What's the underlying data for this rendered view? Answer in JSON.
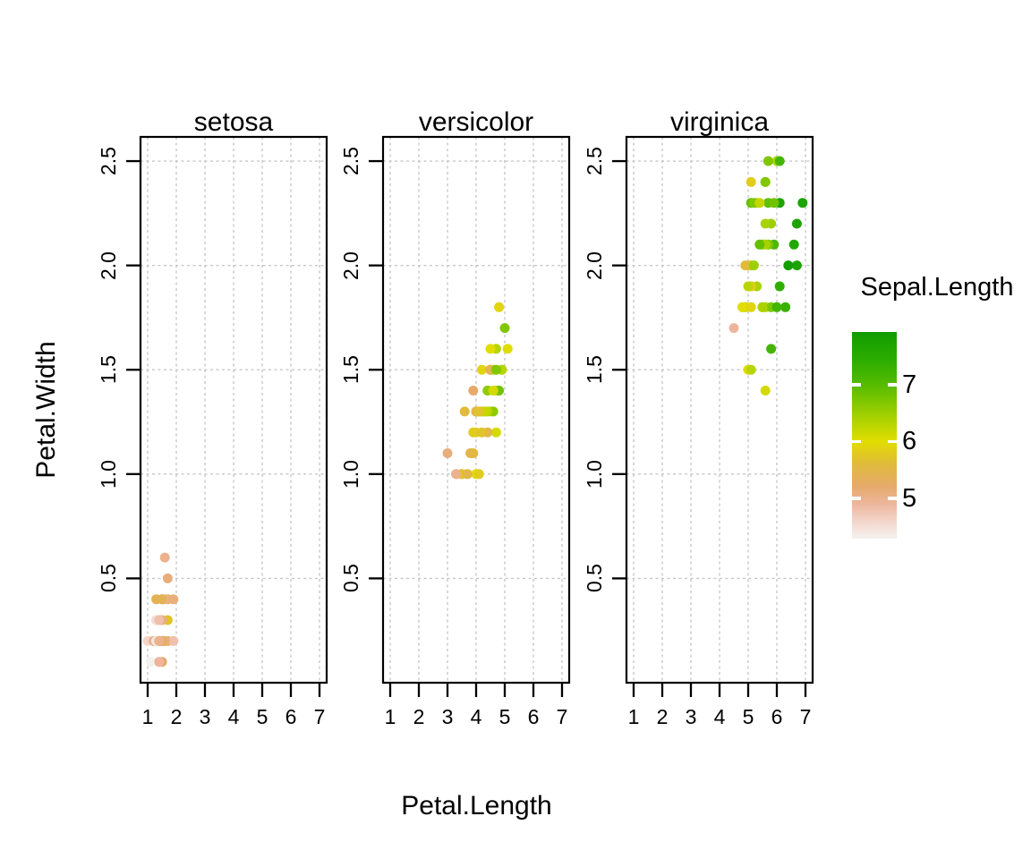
{
  "chart_data": {
    "type": "scatter",
    "title": "",
    "xlabel": "Petal.Length",
    "ylabel": "Petal.Width",
    "color_by": "Sepal.Length",
    "xlim": [
      0.75,
      7.25
    ],
    "ylim": [
      0,
      2.616
    ],
    "x_ticks": [
      1,
      2,
      3,
      4,
      5,
      6,
      7
    ],
    "x_tick_labels": [
      "1",
      "2",
      "3",
      "4",
      "5",
      "6",
      "7"
    ],
    "y_ticks": [
      0.5,
      1.0,
      1.5,
      2.0,
      2.5
    ],
    "y_tick_labels": [
      "0.5",
      "1.0",
      "1.5",
      "2.0",
      "2.5"
    ],
    "grid": "dashed",
    "facets": [
      {
        "label": "setosa",
        "petal_length": [
          1.4,
          1.4,
          1.3,
          1.5,
          1.4,
          1.7,
          1.4,
          1.5,
          1.4,
          1.5,
          1.5,
          1.6,
          1.4,
          1.1,
          1.2,
          1.5,
          1.3,
          1.4,
          1.7,
          1.5,
          1.7,
          1.5,
          1.0,
          1.7,
          1.9,
          1.6,
          1.6,
          1.5,
          1.4,
          1.6,
          1.6,
          1.5,
          1.5,
          1.4,
          1.5,
          1.2,
          1.3,
          1.4,
          1.3,
          1.5,
          1.3,
          1.3,
          1.3,
          1.6,
          1.9,
          1.4,
          1.6,
          1.4,
          1.5,
          1.4
        ],
        "petal_width": [
          0.2,
          0.2,
          0.2,
          0.2,
          0.2,
          0.4,
          0.3,
          0.2,
          0.2,
          0.1,
          0.2,
          0.2,
          0.1,
          0.1,
          0.2,
          0.4,
          0.4,
          0.3,
          0.3,
          0.3,
          0.2,
          0.4,
          0.2,
          0.5,
          0.2,
          0.2,
          0.4,
          0.2,
          0.2,
          0.2,
          0.2,
          0.4,
          0.1,
          0.2,
          0.2,
          0.2,
          0.2,
          0.1,
          0.2,
          0.2,
          0.3,
          0.3,
          0.2,
          0.6,
          0.4,
          0.3,
          0.2,
          0.2,
          0.2,
          0.2
        ],
        "sepal_length": [
          5.1,
          4.9,
          4.7,
          4.6,
          5.0,
          5.4,
          4.6,
          5.0,
          4.4,
          4.9,
          5.4,
          4.8,
          4.8,
          4.3,
          5.8,
          5.7,
          5.4,
          5.1,
          5.7,
          5.1,
          5.4,
          5.1,
          4.6,
          5.1,
          4.8,
          5.0,
          5.0,
          5.2,
          5.2,
          4.7,
          4.8,
          5.4,
          5.2,
          5.5,
          4.9,
          5.0,
          5.5,
          4.9,
          4.4,
          5.1,
          5.0,
          4.5,
          4.4,
          5.0,
          5.1,
          4.8,
          5.1,
          4.6,
          5.3,
          5.0
        ]
      },
      {
        "label": "versicolor",
        "petal_length": [
          4.7,
          4.5,
          4.9,
          4.0,
          4.6,
          4.5,
          4.7,
          3.3,
          4.6,
          3.9,
          3.5,
          4.2,
          4.0,
          4.7,
          3.6,
          4.4,
          4.5,
          4.1,
          4.5,
          3.9,
          4.8,
          4.0,
          4.9,
          4.7,
          4.3,
          4.4,
          4.8,
          5.0,
          4.5,
          3.5,
          3.8,
          3.7,
          3.9,
          5.1,
          4.5,
          4.5,
          4.7,
          4.4,
          4.1,
          4.0,
          4.4,
          4.6,
          4.0,
          3.3,
          4.2,
          4.2,
          4.2,
          4.3,
          3.0,
          4.1
        ],
        "petal_width": [
          1.4,
          1.5,
          1.5,
          1.3,
          1.5,
          1.3,
          1.6,
          1.0,
          1.3,
          1.4,
          1.0,
          1.5,
          1.0,
          1.4,
          1.3,
          1.4,
          1.5,
          1.0,
          1.5,
          1.1,
          1.8,
          1.3,
          1.5,
          1.2,
          1.3,
          1.4,
          1.4,
          1.7,
          1.5,
          1.0,
          1.1,
          1.0,
          1.2,
          1.6,
          1.5,
          1.6,
          1.5,
          1.3,
          1.3,
          1.3,
          1.2,
          1.4,
          1.2,
          1.0,
          1.3,
          1.2,
          1.3,
          1.3,
          1.1,
          1.3
        ],
        "sepal_length": [
          7.0,
          6.4,
          6.9,
          5.5,
          6.5,
          5.7,
          6.3,
          4.9,
          6.6,
          5.2,
          5.0,
          5.9,
          6.0,
          6.1,
          5.6,
          6.7,
          5.6,
          5.8,
          6.2,
          5.6,
          5.9,
          6.1,
          6.3,
          6.1,
          6.4,
          6.6,
          6.8,
          6.7,
          6.0,
          5.7,
          5.5,
          5.5,
          5.8,
          6.0,
          5.4,
          6.0,
          6.7,
          6.3,
          5.6,
          5.5,
          5.5,
          6.1,
          5.8,
          5.0,
          5.6,
          5.7,
          5.7,
          6.2,
          5.1,
          5.7
        ]
      },
      {
        "label": "virginica",
        "petal_length": [
          6.0,
          5.1,
          5.9,
          5.6,
          5.8,
          6.6,
          4.5,
          6.3,
          5.8,
          6.1,
          5.1,
          5.3,
          5.5,
          5.0,
          5.1,
          5.3,
          5.5,
          6.7,
          6.9,
          5.0,
          5.7,
          4.9,
          6.7,
          4.9,
          5.7,
          6.0,
          4.8,
          4.9,
          5.6,
          5.8,
          6.1,
          6.4,
          5.6,
          5.1,
          5.6,
          6.1,
          5.6,
          5.5,
          4.8,
          5.4,
          5.6,
          5.1,
          5.1,
          5.9,
          5.7,
          5.2,
          5.0,
          5.2,
          5.4,
          5.1
        ],
        "petal_width": [
          2.5,
          1.9,
          2.1,
          1.8,
          2.2,
          2.1,
          1.7,
          1.8,
          1.8,
          2.5,
          2.0,
          1.9,
          2.1,
          2.0,
          2.4,
          2.3,
          1.8,
          2.2,
          2.3,
          1.5,
          2.3,
          2.0,
          2.0,
          1.8,
          2.1,
          1.8,
          1.8,
          1.8,
          2.1,
          1.6,
          1.9,
          2.0,
          2.2,
          1.5,
          1.4,
          2.3,
          2.4,
          1.8,
          1.8,
          2.1,
          2.4,
          2.3,
          1.9,
          2.3,
          2.5,
          2.3,
          1.9,
          2.0,
          2.3,
          1.8
        ],
        "sepal_length": [
          6.3,
          5.8,
          7.1,
          6.3,
          6.5,
          7.6,
          4.9,
          7.3,
          6.7,
          7.2,
          6.5,
          6.4,
          6.8,
          5.7,
          5.8,
          6.4,
          6.5,
          7.7,
          7.7,
          6.0,
          6.9,
          5.6,
          7.7,
          6.3,
          6.7,
          7.2,
          6.2,
          6.1,
          6.4,
          7.2,
          7.4,
          7.9,
          6.4,
          6.3,
          6.1,
          7.7,
          6.3,
          6.4,
          6.0,
          6.9,
          6.7,
          6.9,
          5.8,
          6.8,
          6.7,
          6.7,
          6.3,
          6.5,
          6.2,
          5.9
        ]
      }
    ],
    "legend": {
      "title": "Sepal.Length",
      "position": "right",
      "tick_values": [
        7,
        6,
        5
      ],
      "tick_labels": [
        "7",
        "6",
        "5"
      ],
      "domain": [
        4.29,
        7.93
      ],
      "gradient_stops": [
        {
          "value": 4.29,
          "color": "#f4f2f0"
        },
        {
          "value": 4.6,
          "color": "#f3d5cb"
        },
        {
          "value": 4.9,
          "color": "#edb69c"
        },
        {
          "value": 5.2,
          "color": "#e6aa6c"
        },
        {
          "value": 5.6,
          "color": "#e0ba3c"
        },
        {
          "value": 6.0,
          "color": "#e2dd00"
        },
        {
          "value": 6.5,
          "color": "#9ccf00"
        },
        {
          "value": 7.0,
          "color": "#55bb00"
        },
        {
          "value": 7.4,
          "color": "#2fae00"
        },
        {
          "value": 7.93,
          "color": "#109c00"
        }
      ]
    },
    "style_colors": {
      "background": "#ffffff",
      "panel_border": "#000000",
      "gridline": "#c7c7c7",
      "tick": "#000000",
      "text": "#000000",
      "legend_tick_dash": "#ffffff"
    }
  }
}
